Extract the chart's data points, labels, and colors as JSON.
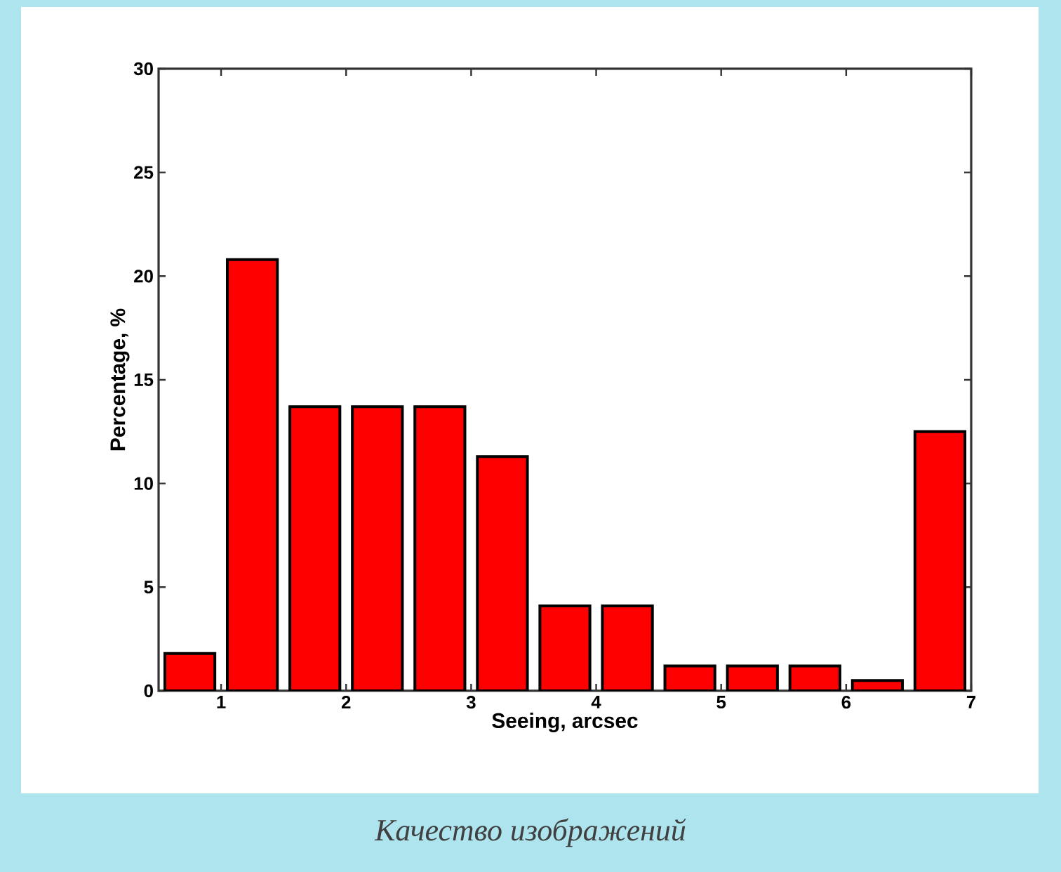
{
  "chart_data": {
    "type": "bar",
    "xlabel": "Seeing, arcsec",
    "ylabel": "Percentage, %",
    "annotations": [
      "Качество изображений"
    ],
    "x": [
      0.75,
      1.25,
      1.75,
      2.25,
      2.75,
      3.25,
      3.75,
      4.25,
      4.75,
      5.25,
      5.75,
      6.25,
      6.75
    ],
    "values": [
      1.8,
      20.8,
      13.7,
      13.7,
      13.7,
      11.3,
      4.1,
      4.1,
      1.2,
      1.2,
      1.2,
      0.5,
      12.5
    ],
    "color": "#ff0000",
    "xlim": [
      0.5,
      7
    ],
    "ylim": [
      0,
      30
    ],
    "xticks": [
      1,
      2,
      3,
      4,
      5,
      6,
      7
    ],
    "yticks": [
      0,
      5,
      10,
      15,
      20,
      25,
      30
    ]
  }
}
